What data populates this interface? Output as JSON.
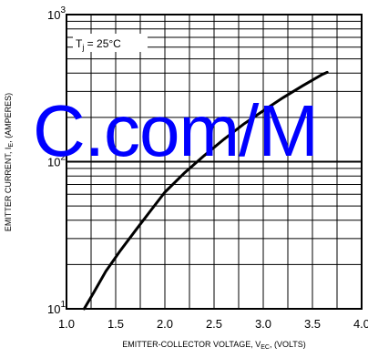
{
  "chart_data": {
    "type": "line",
    "title": "",
    "annotation_prefix": "T",
    "annotation_sub": "j",
    "annotation_suffix": " = 25°C",
    "xlabel_prefix": "EMITTER-COLLECTOR VOLTAGE, V",
    "xlabel_sub": "EC",
    "xlabel_suffix": ", (VOLTS)",
    "ylabel_prefix": "EMITTER CURRENT, I",
    "ylabel_sub": "E",
    "ylabel_suffix": ", (AMPERES)",
    "x_scale": "linear",
    "y_scale": "log",
    "xlim": [
      1.0,
      4.0
    ],
    "ylim": [
      10,
      1000
    ],
    "x_ticks": [
      "1.0",
      "1.5",
      "2.0",
      "2.5",
      "3.0",
      "3.5",
      "4.0"
    ],
    "y_ticks": [
      {
        "base": "10",
        "exp": "1",
        "value": 10
      },
      {
        "base": "10",
        "exp": "2",
        "value": 100
      },
      {
        "base": "10",
        "exp": "3",
        "value": 1000
      }
    ],
    "grid": true,
    "series": [
      {
        "color": "#000000",
        "points": [
          [
            1.18,
            10
          ],
          [
            1.28,
            13
          ],
          [
            1.4,
            18
          ],
          [
            1.55,
            25
          ],
          [
            1.7,
            34
          ],
          [
            1.85,
            46
          ],
          [
            2.0,
            62
          ],
          [
            2.2,
            84
          ],
          [
            2.4,
            110
          ],
          [
            2.6,
            142
          ],
          [
            2.8,
            180
          ],
          [
            3.0,
            222
          ],
          [
            3.2,
            272
          ],
          [
            3.4,
            328
          ],
          [
            3.6,
            392
          ],
          [
            3.65,
            405
          ]
        ]
      }
    ]
  },
  "watermark": {
    "text": "C.com/M",
    "color": "#0000ff"
  }
}
